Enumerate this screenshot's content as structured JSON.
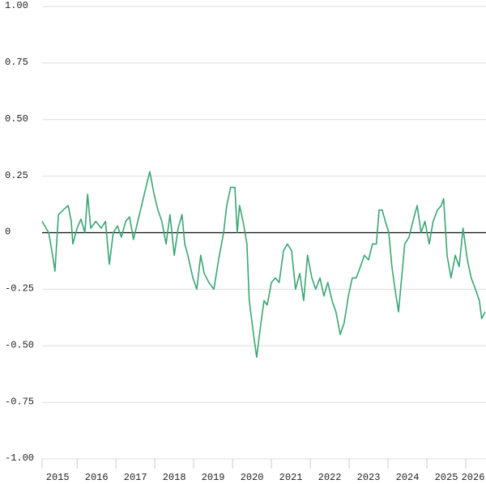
{
  "chart_data": {
    "type": "line",
    "x": [
      2015.1,
      2015.27,
      2015.37,
      2015.43,
      2015.52,
      2015.64,
      2015.77,
      2015.85,
      2015.89,
      2016.0,
      2016.1,
      2016.2,
      2016.27,
      2016.35,
      2016.48,
      2016.62,
      2016.73,
      2016.83,
      2016.93,
      2017.04,
      2017.14,
      2017.25,
      2017.35,
      2017.45,
      2017.56,
      2017.66,
      2017.77,
      2017.87,
      2017.98,
      2018.08,
      2018.18,
      2018.29,
      2018.39,
      2018.5,
      2018.6,
      2018.7,
      2018.77,
      2018.85,
      2018.98,
      2019.08,
      2019.18,
      2019.27,
      2019.39,
      2019.52,
      2019.64,
      2019.77,
      2019.85,
      2019.95,
      2020.06,
      2020.12,
      2020.18,
      2020.27,
      2020.37,
      2020.43,
      2020.54,
      2020.62,
      2020.73,
      2020.81,
      2020.89,
      2021.0,
      2021.1,
      2021.2,
      2021.31,
      2021.41,
      2021.52,
      2021.62,
      2021.73,
      2021.83,
      2021.93,
      2022.04,
      2022.14,
      2022.25,
      2022.35,
      2022.45,
      2022.56,
      2022.66,
      2022.77,
      2022.87,
      2022.98,
      2023.08,
      2023.18,
      2023.29,
      2023.39,
      2023.5,
      2023.6,
      2023.7,
      2023.77,
      2023.85,
      2023.93,
      2024.02,
      2024.1,
      2024.18,
      2024.27,
      2024.35,
      2024.43,
      2024.54,
      2024.64,
      2024.75,
      2024.85,
      2024.95,
      2025.06,
      2025.16,
      2025.27,
      2025.37,
      2025.43,
      2025.52,
      2025.62,
      2025.73,
      2025.83,
      2025.93,
      2026.04,
      2026.14,
      2026.25,
      2026.35,
      2026.41,
      2026.5
    ],
    "series": [
      {
        "color": "#3aa674",
        "values": [
          0.05,
          0.0,
          -0.1,
          -0.17,
          0.08,
          0.1,
          0.12,
          0.05,
          -0.05,
          0.02,
          0.06,
          0.0,
          0.17,
          0.02,
          0.05,
          0.02,
          0.05,
          -0.14,
          0.0,
          0.03,
          -0.02,
          0.05,
          0.07,
          -0.03,
          0.05,
          0.12,
          0.2,
          0.27,
          0.17,
          0.1,
          0.05,
          -0.05,
          0.08,
          -0.1,
          0.02,
          0.08,
          -0.05,
          -0.1,
          -0.2,
          -0.25,
          -0.1,
          -0.18,
          -0.22,
          -0.25,
          -0.12,
          0.0,
          0.12,
          0.2,
          0.2,
          0.0,
          0.12,
          0.05,
          -0.05,
          -0.3,
          -0.45,
          -0.55,
          -0.4,
          -0.3,
          -0.32,
          -0.22,
          -0.2,
          -0.22,
          -0.08,
          -0.05,
          -0.08,
          -0.25,
          -0.18,
          -0.3,
          -0.1,
          -0.2,
          -0.25,
          -0.2,
          -0.28,
          -0.22,
          -0.3,
          -0.35,
          -0.45,
          -0.4,
          -0.28,
          -0.2,
          -0.2,
          -0.15,
          -0.1,
          -0.12,
          -0.05,
          -0.05,
          0.1,
          0.1,
          0.05,
          0.0,
          -0.15,
          -0.25,
          -0.35,
          -0.2,
          -0.05,
          -0.02,
          0.05,
          0.12,
          0.0,
          0.05,
          -0.05,
          0.05,
          0.1,
          0.12,
          0.15,
          -0.1,
          -0.2,
          -0.1,
          -0.15,
          0.02,
          -0.12,
          -0.2,
          -0.25,
          -0.3,
          -0.38,
          -0.35
        ]
      }
    ],
    "xlim": [
      2015.1,
      2026.5
    ],
    "xticks": [
      2015,
      2016,
      2017,
      2018,
      2019,
      2020,
      2021,
      2022,
      2023,
      2024,
      2025,
      2026
    ],
    "ylim": [
      -1,
      1
    ],
    "yticks": [
      {
        "value": 1,
        "label": "1.00"
      },
      0.75,
      {
        "value": 0.5,
        "label": "0.50"
      },
      0.25,
      0,
      -0.25,
      {
        "value": -0.5,
        "label": "-0.50"
      },
      -0.75,
      {
        "value": -1,
        "label": "-1.00"
      }
    ],
    "grid": true
  }
}
